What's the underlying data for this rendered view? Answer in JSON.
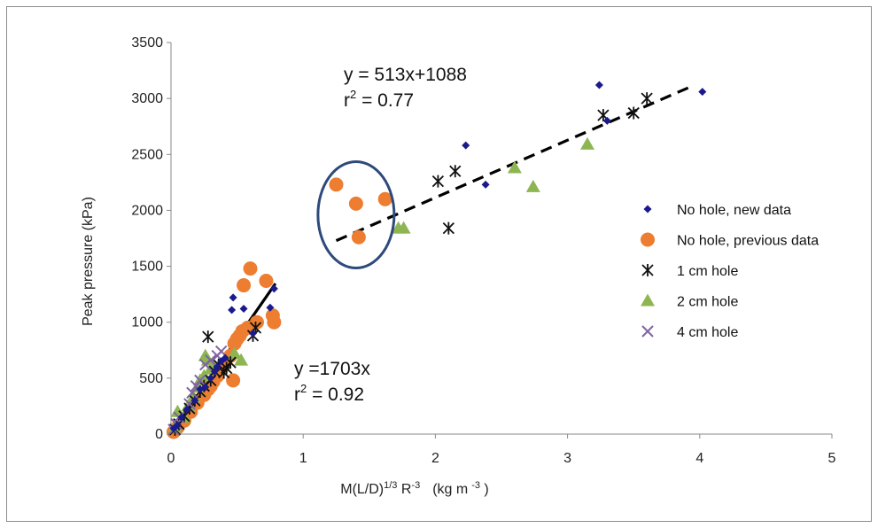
{
  "chart_data": {
    "type": "scatter",
    "xlabel_main": "M(L/D)",
    "xlabel_sup1": "1/3",
    "xlabel_mid": " R",
    "xlabel_sup2": "-3",
    "xlabel_units": "(kg m",
    "xlabel_sup3": "-3",
    "xlabel_end": " )",
    "ylabel": "Peak pressure (kPa)",
    "xlim": [
      0,
      5
    ],
    "ylim": [
      0,
      3500
    ],
    "xticks": [
      0,
      1,
      2,
      3,
      4,
      5
    ],
    "yticks": [
      0,
      500,
      1000,
      1500,
      2000,
      2500,
      3000,
      3500
    ],
    "grid": false,
    "legend_position": "right",
    "series": [
      {
        "name": "No hole, new data",
        "marker": "diamond",
        "color": "#1a1a8c",
        "points": [
          [
            0.02,
            50
          ],
          [
            0.05,
            80
          ],
          [
            0.08,
            150
          ],
          [
            0.12,
            220
          ],
          [
            0.18,
            300
          ],
          [
            0.22,
            400
          ],
          [
            0.26,
            420
          ],
          [
            0.3,
            500
          ],
          [
            0.33,
            560
          ],
          [
            0.35,
            600
          ],
          [
            0.38,
            650
          ],
          [
            0.41,
            680
          ],
          [
            0.46,
            1110
          ],
          [
            0.47,
            1220
          ],
          [
            0.55,
            1120
          ],
          [
            0.62,
            900
          ],
          [
            0.75,
            1130
          ],
          [
            0.78,
            1300
          ],
          [
            2.23,
            2580
          ],
          [
            2.38,
            2230
          ],
          [
            3.24,
            3120
          ],
          [
            3.3,
            2800
          ],
          [
            4.02,
            3060
          ]
        ]
      },
      {
        "name": "No hole, previous data",
        "marker": "circle",
        "color": "#ed7d31",
        "points": [
          [
            0.02,
            20
          ],
          [
            0.05,
            60
          ],
          [
            0.1,
            120
          ],
          [
            0.15,
            200
          ],
          [
            0.2,
            280
          ],
          [
            0.25,
            350
          ],
          [
            0.28,
            400
          ],
          [
            0.3,
            430
          ],
          [
            0.32,
            470
          ],
          [
            0.35,
            520
          ],
          [
            0.38,
            580
          ],
          [
            0.4,
            620
          ],
          [
            0.45,
            700
          ],
          [
            0.47,
            480
          ],
          [
            0.48,
            810
          ],
          [
            0.5,
            850
          ],
          [
            0.52,
            880
          ],
          [
            0.54,
            920
          ],
          [
            0.55,
            1330
          ],
          [
            0.58,
            950
          ],
          [
            0.6,
            1480
          ],
          [
            0.65,
            1000
          ],
          [
            0.72,
            1370
          ],
          [
            0.77,
            1060
          ],
          [
            0.78,
            1000
          ],
          [
            1.25,
            2230
          ],
          [
            1.4,
            2060
          ],
          [
            1.42,
            1760
          ],
          [
            1.62,
            2100
          ]
        ]
      },
      {
        "name": "1 cm hole",
        "marker": "asterisk",
        "color": "#111111",
        "points": [
          [
            0.03,
            40
          ],
          [
            0.06,
            90
          ],
          [
            0.1,
            160
          ],
          [
            0.14,
            230
          ],
          [
            0.18,
            300
          ],
          [
            0.22,
            380
          ],
          [
            0.25,
            430
          ],
          [
            0.28,
            870
          ],
          [
            0.3,
            480
          ],
          [
            0.33,
            560
          ],
          [
            0.36,
            620
          ],
          [
            0.4,
            550
          ],
          [
            0.42,
            590
          ],
          [
            0.45,
            640
          ],
          [
            0.62,
            880
          ],
          [
            0.64,
            950
          ],
          [
            2.02,
            2260
          ],
          [
            2.1,
            1840
          ],
          [
            2.15,
            2350
          ],
          [
            3.27,
            2850
          ],
          [
            3.5,
            2870
          ],
          [
            3.6,
            3000
          ]
        ]
      },
      {
        "name": "2  cm hole",
        "marker": "triangle",
        "color": "#8db653",
        "points": [
          [
            0.03,
            60
          ],
          [
            0.05,
            200
          ],
          [
            0.1,
            150
          ],
          [
            0.13,
            250
          ],
          [
            0.17,
            330
          ],
          [
            0.2,
            420
          ],
          [
            0.22,
            480
          ],
          [
            0.25,
            520
          ],
          [
            0.26,
            700
          ],
          [
            0.28,
            660
          ],
          [
            0.3,
            580
          ],
          [
            0.32,
            620
          ],
          [
            0.48,
            720
          ],
          [
            0.53,
            660
          ],
          [
            1.72,
            1840
          ],
          [
            1.76,
            1840
          ],
          [
            2.6,
            2380
          ],
          [
            2.74,
            2210
          ],
          [
            3.15,
            2590
          ]
        ]
      },
      {
        "name": "4 cm hole",
        "marker": "x",
        "color": "#8064a2",
        "points": [
          [
            0.02,
            40
          ],
          [
            0.04,
            90
          ],
          [
            0.06,
            150
          ],
          [
            0.14,
            270
          ],
          [
            0.16,
            370
          ],
          [
            0.19,
            430
          ],
          [
            0.22,
            480
          ],
          [
            0.26,
            620
          ],
          [
            0.3,
            660
          ],
          [
            0.35,
            700
          ],
          [
            0.38,
            740
          ]
        ]
      }
    ],
    "fits": [
      {
        "style": "solid",
        "color": "#000000",
        "x_range": [
          0,
          0.79
        ],
        "slope": 1703,
        "intercept": 0
      },
      {
        "style": "dashed",
        "color": "#000000",
        "x_range": [
          1.25,
          3.95
        ],
        "slope": 513,
        "intercept": 1088
      }
    ],
    "annotations": {
      "eq_upper_line1": "y = 513x+1088",
      "eq_upper_r": "r",
      "eq_upper_sup": "2",
      "eq_upper_val": " = 0.77",
      "eq_lower_line1": "y =1703x",
      "eq_lower_r": "r",
      "eq_lower_sup": "2",
      "eq_lower_val": " = 0.92"
    },
    "highlight_ellipse": {
      "color": "#2e4a7a",
      "center": [
        1.4,
        1960
      ]
    }
  }
}
